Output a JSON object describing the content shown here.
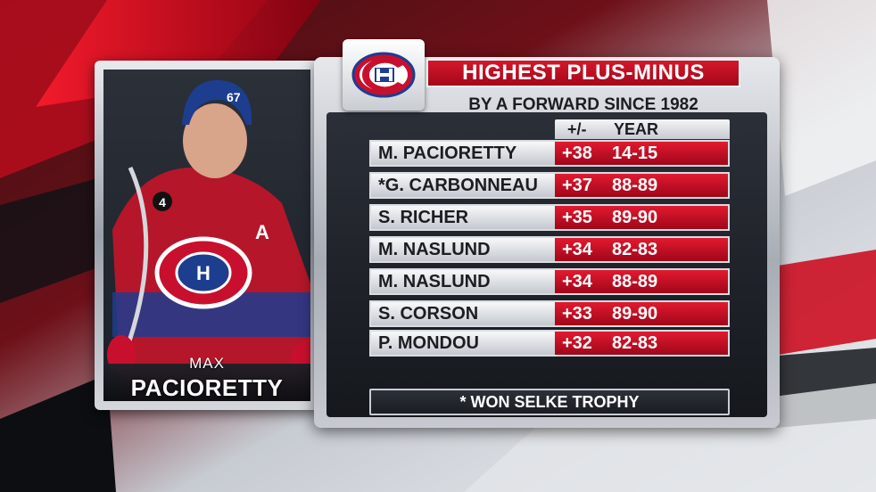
{
  "player": {
    "first_name": "MAX",
    "last_name": "PACIORETTY",
    "jersey_number": "67",
    "captain_letter": "A",
    "patch_number": "4"
  },
  "panel": {
    "title": "HIGHEST PLUS-MINUS",
    "subtitle": "BY A FORWARD SINCE 1982",
    "col_plus_minus": "+/-",
    "col_year": "YEAR",
    "footnote": "* WON SELKE TROPHY",
    "logo": "canadiens-logo-icon"
  },
  "rows": [
    {
      "name": "M. PACIORETTY",
      "pm": "+38",
      "year": "14-15"
    },
    {
      "name": "*G. CARBONNEAU",
      "pm": "+37",
      "year": "88-89"
    },
    {
      "name": "S. RICHER",
      "pm": "+35",
      "year": "89-90"
    },
    {
      "name": "M. NASLUND",
      "pm": "+34",
      "year": "82-83"
    },
    {
      "name": "M. NASLUND",
      "pm": "+34",
      "year": "88-89"
    },
    {
      "name": "S. CORSON",
      "pm": "+33",
      "year": "89-90"
    },
    {
      "name": "P. MONDOU",
      "pm": "+32",
      "year": "82-83"
    }
  ],
  "colors": {
    "accent_red": "#c8102e",
    "canadiens_blue": "#1d3d8f",
    "panel_dark": "#1a1d22"
  }
}
